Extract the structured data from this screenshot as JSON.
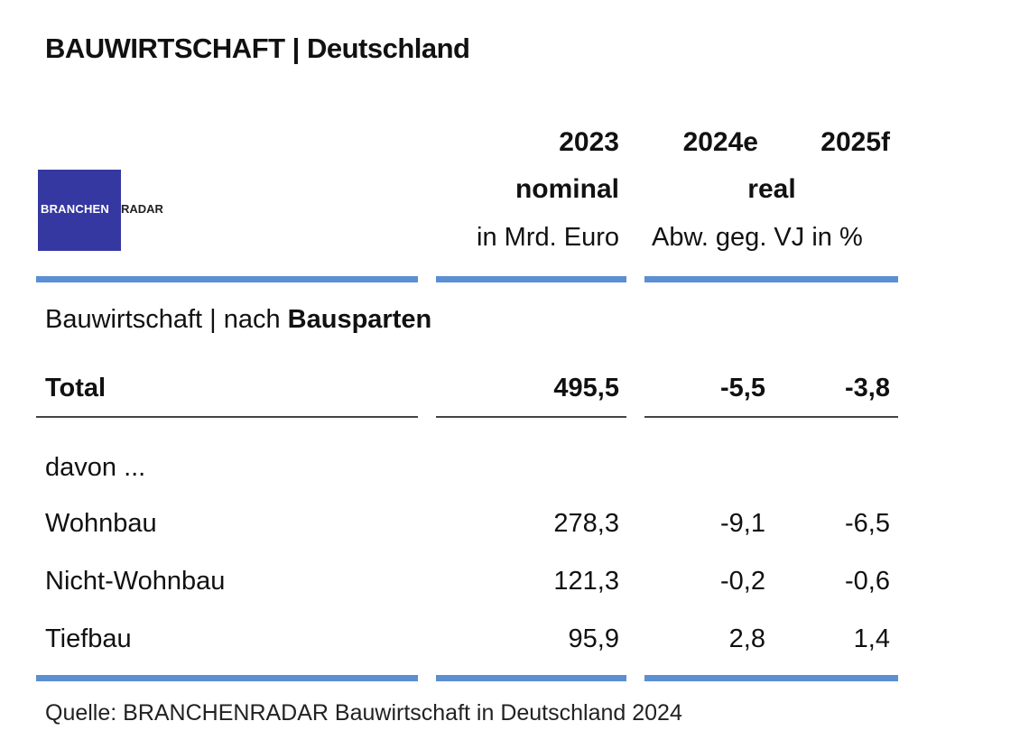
{
  "title": "BAUWIRTSCHAFT | Deutschland",
  "logo": {
    "text_a": "BRANCHEN",
    "text_b": "RADAR"
  },
  "columns": {
    "c2023": {
      "year": "2023",
      "kind": "nominal",
      "unit": "in Mrd. Euro"
    },
    "c2024": {
      "year": "2024e"
    },
    "c2025": {
      "year": "2025f"
    },
    "real_label": "real",
    "real_unit": "Abw. geg. VJ in %"
  },
  "section": {
    "prefix": "Bauwirtschaft | nach ",
    "bold": "Bausparten"
  },
  "total": {
    "label": "Total",
    "v2023": "495,5",
    "v2024": "-5,5",
    "v2025": "-3,8"
  },
  "davon_label": "davon ...",
  "rows": [
    {
      "label": "Wohnbau",
      "v2023": "278,3",
      "v2024": "-9,1",
      "v2025": "-6,5"
    },
    {
      "label": "Nicht-Wohnbau",
      "v2023": "121,3",
      "v2024": "-0,2",
      "v2025": "-0,6"
    },
    {
      "label": "Tiefbau",
      "v2023": "95,9",
      "v2024": "2,8",
      "v2025": "1,4"
    }
  ],
  "source": "Quelle: BRANCHENRADAR Bauwirtschaft in Deutschland 2024",
  "colors": {
    "accent_bar": "#5b8fd1",
    "logo_bg": "#3538a0",
    "rule": "#444444"
  },
  "chart_data": {
    "type": "table",
    "title": "BAUWIRTSCHAFT | Deutschland",
    "columns": [
      "2023 nominal in Mrd. Euro",
      "2024e real Abw. geg. VJ in %",
      "2025f real Abw. geg. VJ in %"
    ],
    "rows": [
      {
        "label": "Total",
        "values": [
          495.5,
          -5.5,
          -3.8
        ]
      },
      {
        "label": "Wohnbau",
        "values": [
          278.3,
          -9.1,
          -6.5
        ]
      },
      {
        "label": "Nicht-Wohnbau",
        "values": [
          121.3,
          -0.2,
          -0.6
        ]
      },
      {
        "label": "Tiefbau",
        "values": [
          95.9,
          2.8,
          1.4
        ]
      }
    ]
  }
}
